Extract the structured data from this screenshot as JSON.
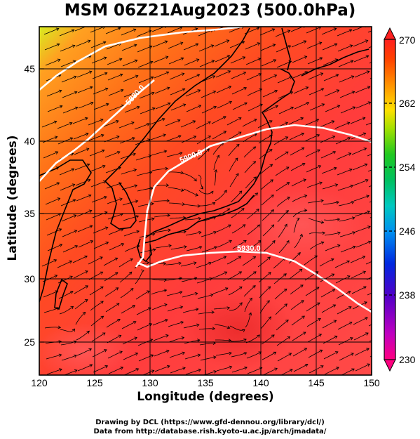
{
  "title": "MSM 06Z21Aug2023 (500.0hPa)",
  "axes": {
    "xlabel": "Longitude (degrees)",
    "ylabel": "Latitude  (degrees)",
    "xticks": [
      "120",
      "125",
      "130",
      "135",
      "140",
      "145",
      "150"
    ],
    "yticks": [
      "25",
      "30",
      "35",
      "40",
      "45"
    ]
  },
  "colorbar": {
    "ticks": [
      "270",
      "262",
      "254",
      "246",
      "238",
      "230"
    ],
    "palette": [
      "#ff0080",
      "#c000c0",
      "#5000c8",
      "#0028e0",
      "#0090f0",
      "#00c8c0",
      "#00c060",
      "#20c820",
      "#a0e000",
      "#ffe000",
      "#ff9000",
      "#ff4000",
      "#ff2020"
    ]
  },
  "contours": [
    {
      "label": "5880.0"
    },
    {
      "label": "5900.0"
    },
    {
      "label": "5930.0"
    }
  ],
  "credits": [
    "Drawing by DCL (https://www.gfd-dennou.org/library/dcl/)",
    "Data from http://database.rish.kyoto-u.ac.jp/arch/jmadata/"
  ],
  "map": {
    "lon_range": [
      120,
      150
    ],
    "lat_range": [
      23,
      48
    ],
    "field": "temperature",
    "overlay": "streamlines",
    "contour_field": "geopotential height"
  }
}
